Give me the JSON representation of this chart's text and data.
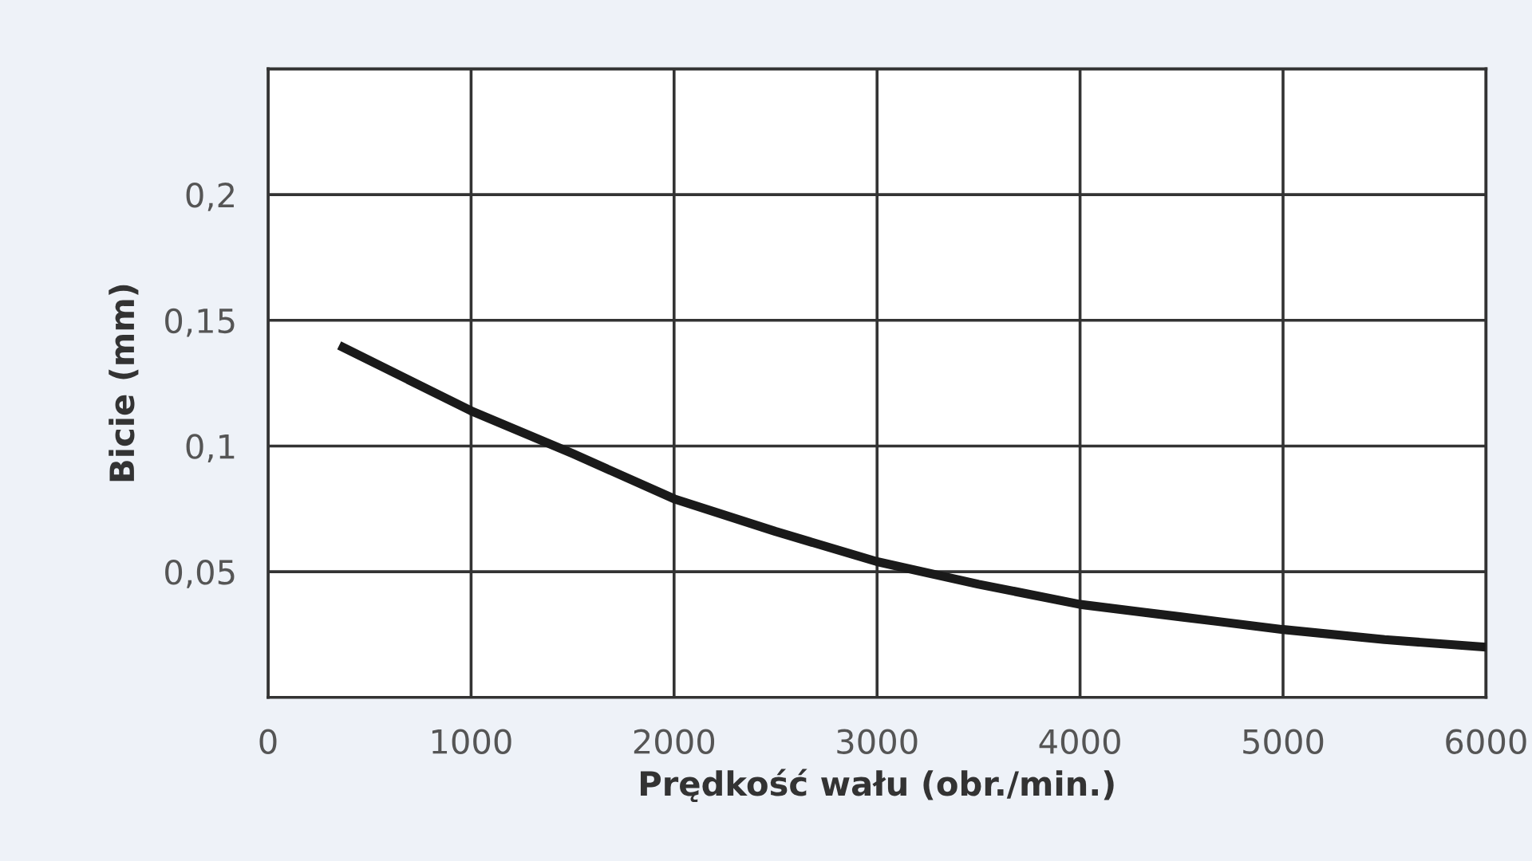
{
  "chart_data": {
    "type": "line",
    "xlabel": "Prędkość wału (obr./min.)",
    "ylabel": "Bicie (mm)",
    "x": [
      350,
      700,
      1000,
      1500,
      2000,
      2500,
      3000,
      3500,
      4000,
      4500,
      5000,
      5500,
      6000
    ],
    "series": [
      {
        "color": "#1a1a1a",
        "values": [
          0.14,
          0.126,
          0.114,
          0.097,
          0.079,
          0.066,
          0.054,
          0.045,
          0.037,
          0.032,
          0.027,
          0.023,
          0.02
        ]
      }
    ],
    "xlim": [
      0,
      6000
    ],
    "ylim": [
      0,
      0.25
    ],
    "xticks": [
      0,
      1000,
      2000,
      3000,
      4000,
      5000,
      6000
    ],
    "yticks": [
      {
        "value": 0,
        "label": null
      },
      {
        "value": 0.05,
        "label": "0,05"
      },
      {
        "value": 0.1,
        "label": "0,1"
      },
      {
        "value": 0.15,
        "label": "0,15"
      },
      {
        "value": 0.2,
        "label": "0,2"
      },
      {
        "value": 0.25,
        "label": null
      }
    ],
    "grid": true,
    "marker": "none",
    "line_style": "solid"
  }
}
